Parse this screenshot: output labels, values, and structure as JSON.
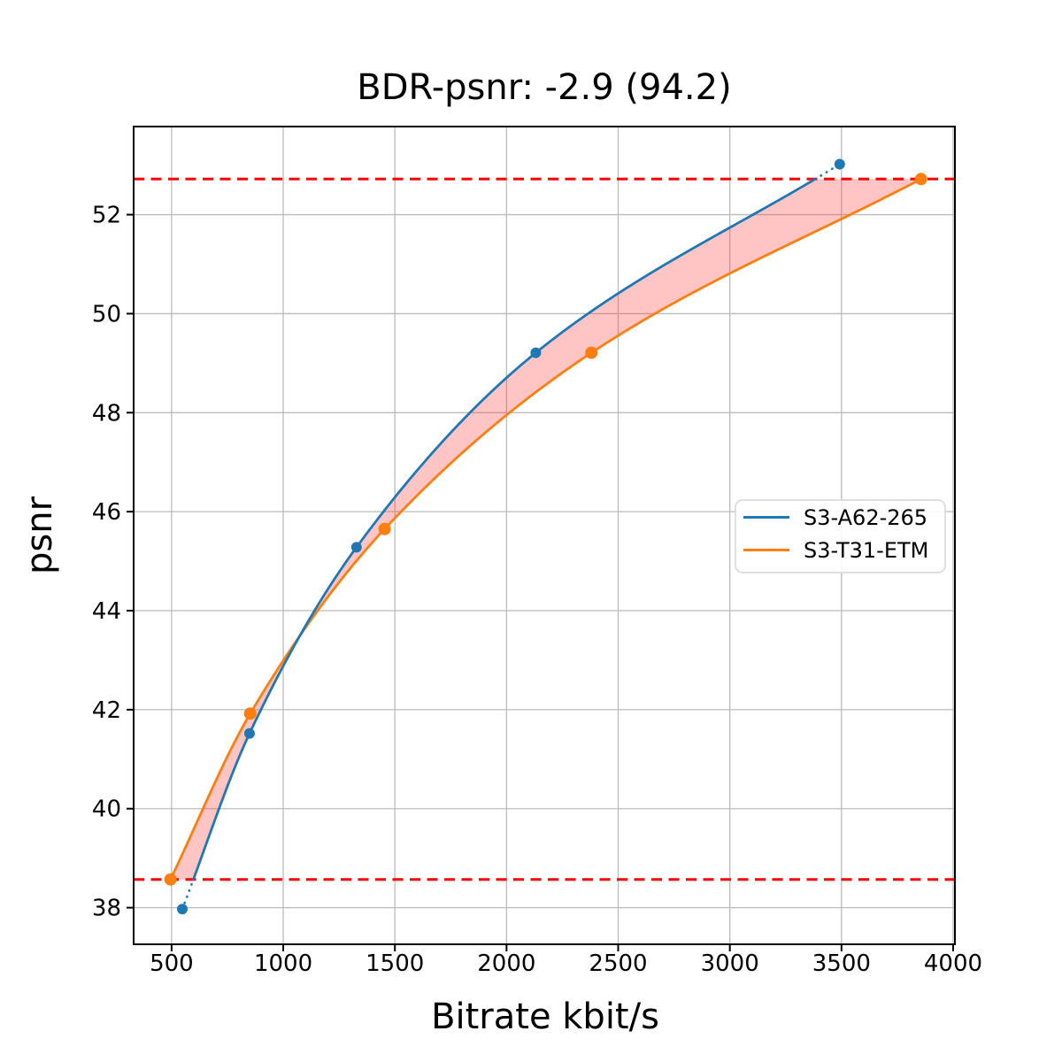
{
  "figure": {
    "title": "BDR-psnr: -2.9 (94.2)",
    "xlabel": "Bitrate kbit/s",
    "ylabel": "psnr",
    "background": "#ffffff"
  },
  "chart_data": {
    "type": "line",
    "title": "BDR-psnr: -2.9 (94.2)",
    "xlabel": "Bitrate kbit/s",
    "ylabel": "psnr",
    "xlim": [
      330,
      4008
    ],
    "ylim": [
      37.26,
      53.78
    ],
    "xticks": [
      500,
      1000,
      1500,
      2000,
      2500,
      3000,
      3500,
      4000
    ],
    "yticks": [
      38,
      40,
      42,
      44,
      46,
      48,
      50,
      52
    ],
    "grid": true,
    "grid_color": "#bbbbbb",
    "legend_position": "center-right",
    "series": [
      {
        "name": "S3-A62-265",
        "color": "#1f77b4",
        "marker": "circle",
        "x": [
          548,
          849,
          1328,
          2131,
          3492
        ],
        "y": [
          37.97,
          41.52,
          45.28,
          49.21,
          53.02
        ]
      },
      {
        "name": "S3-T31-ETM",
        "color": "#ff7f0e",
        "marker": "circle",
        "x": [
          495,
          852,
          1454,
          2380,
          3856
        ],
        "y": [
          38.57,
          41.92,
          45.65,
          49.21,
          52.72
        ]
      }
    ],
    "reference_lines": {
      "color": "#ff0000",
      "style": "dashed",
      "values": [
        38.57,
        52.72
      ]
    },
    "shaded_region": {
      "description": "area between the two rate-distortion curves inside the overlap interval",
      "fill": "rgba(255, 60, 60, 0.30)"
    },
    "bd_metrics": {
      "bdr_psnr": -2.9,
      "overlap_percent": 94.2
    }
  }
}
